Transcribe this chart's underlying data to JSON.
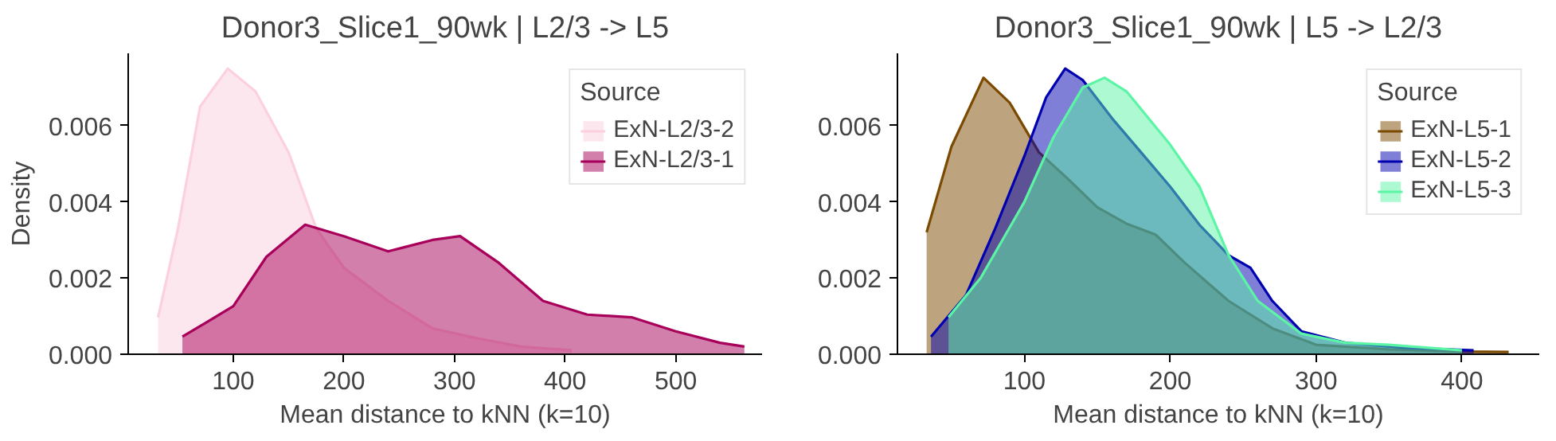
{
  "chart_data": [
    {
      "type": "area",
      "title": "Donor3_Slice1_90wk | L2/3 -> L5",
      "xlabel": "Mean distance to kNN (k=10)",
      "ylabel": "Density",
      "legend_title": "Source",
      "legend": "top right",
      "grid": false,
      "xlim": [
        5,
        578
      ],
      "xticks": [
        100,
        200,
        300,
        400,
        500
      ],
      "ylim": [
        0,
        0.0079
      ],
      "yticks": [
        {
          "value": 0,
          "label": "0.000"
        },
        {
          "value": 0.002,
          "label": "0.002"
        },
        {
          "value": 0.004,
          "label": "0.004"
        },
        {
          "value": 0.006,
          "label": "0.006"
        }
      ],
      "series": [
        {
          "name": "ExN-L2/3-2",
          "color": "#fcd0de",
          "x": [
            32,
            50,
            70,
            95,
            120,
            150,
            175,
            200,
            240,
            280,
            320,
            360,
            406
          ],
          "values": [
            0.00097,
            0.0033,
            0.0065,
            0.0075,
            0.0069,
            0.0053,
            0.0033,
            0.00227,
            0.0014,
            0.00068,
            0.00042,
            0.0002,
            0.0001
          ]
        },
        {
          "name": "ExN-L2/3-1",
          "color": "#a8005a",
          "x": [
            54,
            100,
            130,
            165,
            200,
            240,
            280,
            305,
            340,
            380,
            420,
            460,
            500,
            540,
            562
          ],
          "values": [
            0.00046,
            0.00126,
            0.00256,
            0.0034,
            0.0031,
            0.0027,
            0.003,
            0.0031,
            0.0024,
            0.0014,
            0.00104,
            0.00097,
            0.0006,
            0.0003,
            0.0002
          ]
        }
      ]
    },
    {
      "type": "area",
      "title": "Donor3_Slice1_90wk | L5 -> L2/3",
      "xlabel": "Mean distance to kNN (k=10)",
      "legend_title": "Source",
      "legend": "top right",
      "grid": false,
      "xlim": [
        13,
        453
      ],
      "xticks": [
        100,
        200,
        300,
        400
      ],
      "ylim": [
        0,
        0.0079
      ],
      "yticks": [
        {
          "value": 0,
          "label": "0.000"
        },
        {
          "value": 0.002,
          "label": "0.002"
        },
        {
          "value": 0.004,
          "label": "0.004"
        },
        {
          "value": 0.006,
          "label": "0.006"
        }
      ],
      "series": [
        {
          "name": "ExN-L5-1",
          "color": "#7b4a00",
          "x": [
            33,
            50,
            72,
            90,
            110,
            130,
            150,
            170,
            190,
            210,
            240,
            270,
            300,
            350,
            400,
            432
          ],
          "values": [
            0.0032,
            0.00545,
            0.00726,
            0.0066,
            0.0053,
            0.0046,
            0.00386,
            0.00343,
            0.00314,
            0.0024,
            0.0014,
            0.00068,
            0.00025,
            0.00013,
            7e-05,
            6e-05
          ]
        },
        {
          "name": "ExN-L5-2",
          "color": "#0000b0",
          "x": [
            36,
            60,
            80,
            100,
            115,
            128,
            140,
            160,
            180,
            200,
            220,
            240,
            255,
            270,
            290,
            320,
            360,
            408
          ],
          "values": [
            0.00046,
            0.00155,
            0.0033,
            0.0052,
            0.00675,
            0.0075,
            0.0072,
            0.0062,
            0.0053,
            0.0044,
            0.0034,
            0.0026,
            0.00227,
            0.0014,
            0.0006,
            0.0003,
            0.00017,
            0.0001
          ]
        },
        {
          "name": "ExN-L5-3",
          "color": "#5cf5a5",
          "x": [
            48,
            70,
            100,
            120,
            140,
            155,
            170,
            200,
            220,
            240,
            260,
            290,
            320,
            350,
            400
          ],
          "values": [
            0.00097,
            0.002,
            0.004,
            0.0057,
            0.007,
            0.00726,
            0.0069,
            0.0055,
            0.0044,
            0.0026,
            0.0014,
            0.00054,
            0.0003,
            0.00025,
            0.0001
          ]
        }
      ]
    }
  ]
}
